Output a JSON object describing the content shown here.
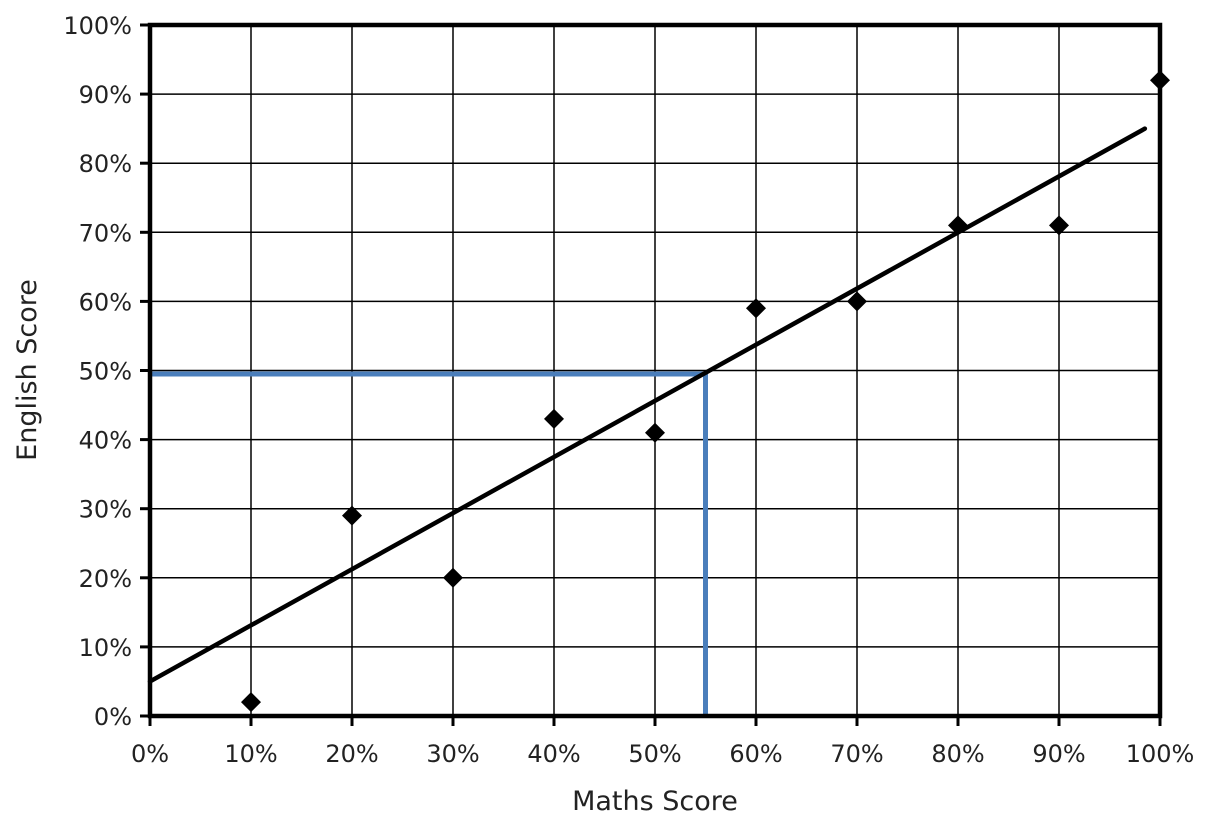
{
  "chart_data": {
    "type": "scatter",
    "title": "",
    "xlabel": "Maths Score",
    "ylabel": "English Score",
    "xlim": [
      0,
      100
    ],
    "ylim": [
      0,
      100
    ],
    "grid": true,
    "x_ticks": [
      "0%",
      "10%",
      "20%",
      "30%",
      "40%",
      "50%",
      "60%",
      "70%",
      "80%",
      "90%",
      "100%"
    ],
    "y_ticks": [
      "0%",
      "10%",
      "20%",
      "30%",
      "40%",
      "50%",
      "60%",
      "70%",
      "80%",
      "90%",
      "100%"
    ],
    "series": [
      {
        "marker": "diamond",
        "color": "#000000",
        "points": [
          {
            "x": 10,
            "y": 2
          },
          {
            "x": 20,
            "y": 29
          },
          {
            "x": 30,
            "y": 20
          },
          {
            "x": 40,
            "y": 43
          },
          {
            "x": 50,
            "y": 41
          },
          {
            "x": 60,
            "y": 59
          },
          {
            "x": 70,
            "y": 60
          },
          {
            "x": 80,
            "y": 71
          },
          {
            "x": 90,
            "y": 71
          },
          {
            "x": 100,
            "y": 92
          }
        ]
      }
    ],
    "trend_line": {
      "from": {
        "x": 0,
        "y": 5
      },
      "to": {
        "x": 98.5,
        "y": 85
      },
      "color": "#000000"
    },
    "reading_guide": {
      "x": 55,
      "y": 49.5,
      "color": "#4a7ebb"
    }
  }
}
